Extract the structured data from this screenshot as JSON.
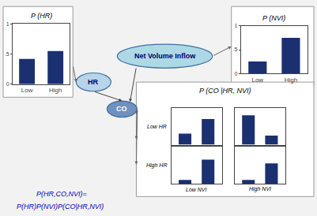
{
  "chart_data": [
    {
      "type": "bar",
      "title": "P (HR)",
      "categories": [
        "Low",
        "High"
      ],
      "values": [
        0.42,
        0.55
      ],
      "color": "#1a3070",
      "ylim": [
        0,
        1
      ],
      "yticks": [
        0,
        {
          "value": 0.5,
          "label": ".5"
        },
        1
      ],
      "grid": false
    },
    {
      "type": "bar",
      "title": "P (NVI)",
      "categories": [
        "Low",
        "High"
      ],
      "values": [
        0.25,
        0.75
      ],
      "color": "#1a3070",
      "ylim": [
        0,
        1
      ],
      "yticks": [
        0,
        {
          "value": 0.5,
          "label": ".5"
        },
        1
      ],
      "grid": false
    },
    {
      "type": "bar",
      "categories": [
        null,
        null
      ],
      "values": [
        0.3,
        0.7
      ],
      "color": "#1a3070",
      "ylim": [
        0,
        1
      ],
      "yticks": [],
      "tick_labels": false,
      "grid": false
    },
    {
      "type": "bar",
      "categories": [
        null,
        null
      ],
      "values": [
        0.8,
        0.25
      ],
      "color": "#1a3070",
      "ylim": [
        0,
        1
      ],
      "yticks": [],
      "tick_labels": false,
      "grid": false
    },
    {
      "type": "bar",
      "categories": [
        null,
        null
      ],
      "values": [
        0.1,
        0.65
      ],
      "color": "#1a3070",
      "ylim": [
        0,
        1
      ],
      "yticks": [],
      "tick_labels": false,
      "grid": false
    },
    {
      "type": "bar",
      "categories": [
        null,
        null
      ],
      "values": [
        0.1,
        0.55
      ],
      "color": "#1a3070",
      "ylim": [
        0,
        1
      ],
      "yticks": [],
      "tick_labels": false,
      "grid": false
    }
  ],
  "annotations": [
    "P (CO |HR, NVI)",
    "Low HR",
    "High HR",
    "Low NVI",
    "High NVI",
    "Net Volume Inflow",
    "HR",
    "CO",
    "P(HR,CO,NVI)=",
    "P(HR)P(NVI)P(CO|HR,NVI)"
  ]
}
